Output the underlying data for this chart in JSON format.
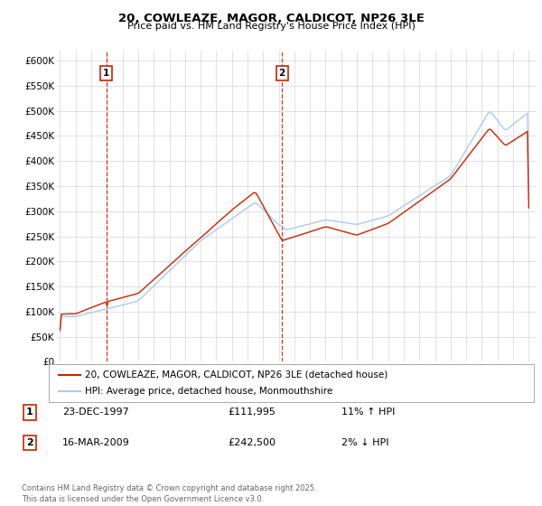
{
  "title": "20, COWLEAZE, MAGOR, CALDICOT, NP26 3LE",
  "subtitle": "Price paid vs. HM Land Registry's House Price Index (HPI)",
  "ylim": [
    0,
    620000
  ],
  "yticks": [
    0,
    50000,
    100000,
    150000,
    200000,
    250000,
    300000,
    350000,
    400000,
    450000,
    500000,
    550000,
    600000
  ],
  "ytick_labels": [
    "£0",
    "£50K",
    "£100K",
    "£150K",
    "£200K",
    "£250K",
    "£300K",
    "£350K",
    "£400K",
    "£450K",
    "£500K",
    "£550K",
    "£600K"
  ],
  "line_color_red": "#cc2200",
  "line_color_blue": "#aaccee",
  "vline_color": "#cc2200",
  "marker1_year": 1997.97,
  "marker2_year": 2009.21,
  "sale1_label": "1",
  "sale2_label": "2",
  "sale1_date": "23-DEC-1997",
  "sale1_price": "£111,995",
  "sale1_hpi": "11% ↑ HPI",
  "sale2_date": "16-MAR-2009",
  "sale2_price": "£242,500",
  "sale2_hpi": "2% ↓ HPI",
  "legend_red": "20, COWLEAZE, MAGOR, CALDICOT, NP26 3LE (detached house)",
  "legend_blue": "HPI: Average price, detached house, Monmouthshire",
  "footer": "Contains HM Land Registry data © Crown copyright and database right 2025.\nThis data is licensed under the Open Government Licence v3.0.",
  "background_color": "#ffffff",
  "grid_color": "#cccccc",
  "xlim_min": 1994.8,
  "xlim_max": 2025.5
}
